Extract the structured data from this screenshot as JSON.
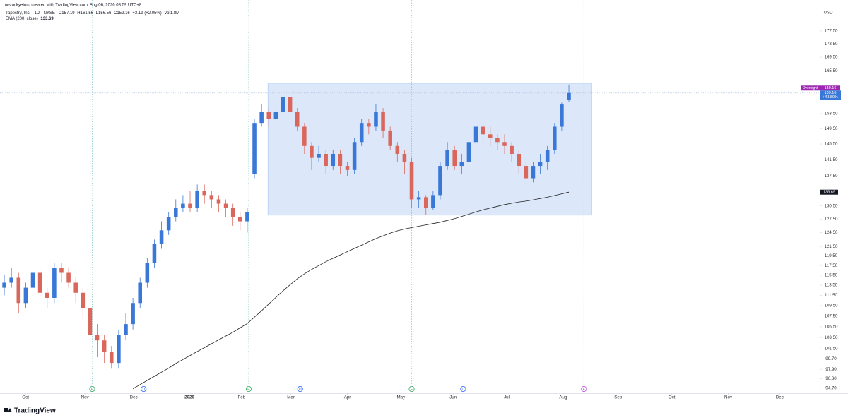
{
  "header": {
    "attribution": "mrstockyetoro created with TradingView.com, Aug 06, 2026 08:59 UTC+8",
    "symbol": "Tapestry, Inc. · 1D · NYSE",
    "ohlc_labels": [
      "O",
      "H",
      "L",
      "C"
    ],
    "change": "+3.19 (+2.05%)",
    "volume_label": "Vol",
    "volume": "1.8M",
    "logo": "TradingView"
  },
  "chart_data": {
    "type": "candlestick",
    "currency": "USD",
    "log_scale": true,
    "grid": false,
    "ylim": [
      94.1,
      185.6
    ],
    "yticks": [
      {
        "value": 177.5,
        "label": "177.50"
      },
      {
        "value": 173.5,
        "label": "173.50"
      },
      {
        "value": 169.5,
        "label": "169.50"
      },
      {
        "value": 165.5,
        "label": "165.50"
      },
      {
        "value": 153.5,
        "label": "153.50"
      },
      {
        "value": 149.5,
        "label": "149.50"
      },
      {
        "value": 145.5,
        "label": "145.50"
      },
      {
        "value": 141.5,
        "label": "141.50"
      },
      {
        "value": 137.5,
        "label": "137.50"
      },
      {
        "value": 130.5,
        "label": "130.50"
      },
      {
        "value": 127.5,
        "label": "127.50"
      },
      {
        "value": 124.5,
        "label": "124.50"
      },
      {
        "value": 121.5,
        "label": "121.50"
      },
      {
        "value": 119.5,
        "label": "119.50"
      },
      {
        "value": 117.5,
        "label": "117.50"
      },
      {
        "value": 115.5,
        "label": "115.50"
      },
      {
        "value": 113.5,
        "label": "113.50"
      },
      {
        "value": 111.5,
        "label": "111.50"
      },
      {
        "value": 109.5,
        "label": "109.50"
      },
      {
        "value": 107.5,
        "label": "107.50"
      },
      {
        "value": 105.5,
        "label": "105.50"
      },
      {
        "value": 103.5,
        "label": "103.50"
      },
      {
        "value": 101.5,
        "label": "101.50"
      },
      {
        "value": 99.7,
        "label": "99.70"
      },
      {
        "value": 97.9,
        "label": "97.90"
      },
      {
        "value": 96.3,
        "label": "96.30"
      },
      {
        "value": 94.7,
        "label": "94.70"
      }
    ],
    "xlim": [
      -0.6,
      114.1
    ],
    "xticks": [
      {
        "value": 2.97,
        "label": "Oct"
      },
      {
        "value": 11.28,
        "label": "Nov"
      },
      {
        "value": 18.1,
        "label": "Dec"
      },
      {
        "value": 25.9,
        "label": "2026"
      },
      {
        "value": 33.2,
        "label": "Feb"
      },
      {
        "value": 40.1,
        "label": "Mar"
      },
      {
        "value": 48.0,
        "label": "Apr"
      },
      {
        "value": 55.5,
        "label": "May"
      },
      {
        "value": 62.8,
        "label": "Jun"
      },
      {
        "value": 70.3,
        "label": "Jul"
      },
      {
        "value": 78.2,
        "label": "Aug"
      },
      {
        "value": 85.9,
        "label": "Sep"
      },
      {
        "value": 93.4,
        "label": "Oct"
      },
      {
        "value": 101.3,
        "label": "Nov"
      },
      {
        "value": 108.5,
        "label": "Dec"
      }
    ],
    "series": [
      {
        "up_color": "#3a78d8",
        "down_color": "#d9675c",
        "open": [
          113,
          114,
          115,
          110,
          113,
          116,
          112,
          111,
          117,
          116,
          114,
          112,
          109,
          104,
          103,
          101,
          99,
          104,
          106,
          110,
          114,
          118,
          122,
          125,
          128,
          130,
          131,
          130,
          134,
          133,
          132,
          131,
          130,
          128,
          127,
          138,
          151,
          154,
          152,
          154,
          158,
          154,
          150,
          145,
          142,
          143,
          140,
          143,
          140,
          139,
          146,
          151,
          150,
          154,
          149,
          145,
          143,
          141,
          132,
          132.5,
          130,
          133,
          140,
          144,
          140,
          141,
          146,
          150,
          148,
          147,
          146,
          145,
          143,
          140,
          137,
          140,
          141,
          144,
          150,
          157.19
        ],
        "high": [
          115.5,
          117,
          116,
          114,
          118,
          117,
          113,
          118,
          118,
          117,
          115,
          113,
          110,
          106,
          104,
          102,
          105,
          108,
          111,
          115,
          119,
          123,
          127,
          129,
          132,
          133,
          134,
          135.5,
          135.5,
          134,
          133,
          132,
          131,
          129,
          130,
          152,
          156,
          155,
          156,
          161.5,
          159,
          155,
          151,
          146,
          145,
          144,
          144,
          144,
          141,
          147,
          152,
          152,
          156,
          155,
          150,
          146,
          144,
          142,
          134,
          133,
          134,
          141,
          146,
          145,
          143,
          147,
          153,
          151,
          150,
          148,
          148,
          146,
          144,
          141,
          141,
          143,
          145,
          151,
          156.5,
          161.56
        ],
        "low": [
          111.5,
          113,
          108,
          109,
          112,
          111,
          109,
          110,
          114,
          113,
          110,
          107,
          94.5,
          100,
          99,
          98,
          98,
          103,
          105,
          109,
          113,
          117,
          121,
          124,
          127,
          129,
          129,
          129,
          131,
          130,
          129,
          128,
          126,
          125,
          124.5,
          137,
          150,
          150,
          151,
          153,
          152,
          149,
          143,
          139,
          141,
          138,
          139,
          138,
          137.5,
          138,
          145,
          148,
          149,
          147,
          144,
          141,
          138,
          130,
          130,
          128.5,
          129.5,
          132,
          139,
          139,
          138,
          140,
          145,
          146,
          145,
          144,
          143,
          141,
          138,
          135.5,
          136,
          138,
          139,
          143,
          149,
          156.56
        ],
        "close": [
          114,
          115,
          110,
          113,
          116,
          112,
          111,
          117,
          116,
          114,
          112,
          109,
          104,
          103,
          101,
          99,
          104,
          106,
          110,
          114,
          118,
          122,
          125,
          128,
          130,
          131,
          130,
          134,
          133,
          132,
          131,
          130,
          128,
          127,
          129,
          151,
          154,
          152,
          154,
          158,
          154,
          150,
          145,
          142,
          143,
          140,
          143,
          140,
          139,
          146,
          151,
          150,
          154,
          149,
          145,
          143,
          141,
          132,
          132.5,
          130,
          133,
          140,
          144,
          140,
          141,
          146,
          150,
          148,
          147,
          146,
          145,
          143,
          140,
          137,
          140,
          141,
          144,
          150,
          155.97,
          159.16
        ]
      }
    ],
    "ema": {
      "name": "EMA (200, close)",
      "color": "#222",
      "values": [
        null,
        null,
        null,
        null,
        null,
        null,
        null,
        null,
        null,
        null,
        null,
        null,
        null,
        null,
        null,
        null,
        null,
        null,
        94.6,
        95.3,
        96.0,
        96.7,
        97.4,
        98.1,
        98.9,
        99.6,
        100.3,
        101.0,
        101.7,
        102.4,
        103.1,
        103.8,
        104.5,
        105.3,
        106.1,
        107.3,
        108.5,
        109.8,
        111.1,
        112.4,
        113.6,
        114.8,
        115.8,
        116.7,
        117.5,
        118.3,
        119.0,
        119.7,
        120.4,
        121.1,
        121.8,
        122.5,
        123.2,
        123.8,
        124.4,
        124.9,
        125.3,
        125.6,
        125.9,
        126.2,
        126.5,
        126.8,
        127.2,
        127.6,
        128.1,
        128.6,
        129.1,
        129.6,
        130.0,
        130.4,
        130.8,
        131.1,
        131.4,
        131.6,
        131.9,
        132.2,
        132.5,
        132.9,
        133.3,
        133.69
      ]
    },
    "overnight": {
      "label": "Overnight",
      "value": 159.16,
      "color": "#9c27b0"
    },
    "change_percent_label": "+43.89%",
    "box": {
      "x": [
        36.9,
        82.2
      ],
      "y": [
        128.4,
        161.9
      ],
      "color": "#dce8fa",
      "border": "#b5cdf3"
    },
    "events": [
      {
        "label": "E",
        "x": 12.3,
        "color": "#2ba35a",
        "dotted_line": true
      },
      {
        "label": "D",
        "x": 19.5,
        "color": "#2962ff",
        "dotted_line": false
      },
      {
        "label": "E",
        "x": 34.2,
        "color": "#2ba35a",
        "dotted_line": true
      },
      {
        "label": "D",
        "x": 41.4,
        "color": "#2962ff",
        "dotted_line": false
      },
      {
        "label": "E",
        "x": 57.0,
        "color": "#2ba35a",
        "dotted_line": true
      },
      {
        "label": "D",
        "x": 64.2,
        "color": "#2962ff",
        "dotted_line": false
      },
      {
        "label": "E",
        "x": 81.1,
        "color": "#b14fd6",
        "dotted_line": true
      }
    ]
  }
}
